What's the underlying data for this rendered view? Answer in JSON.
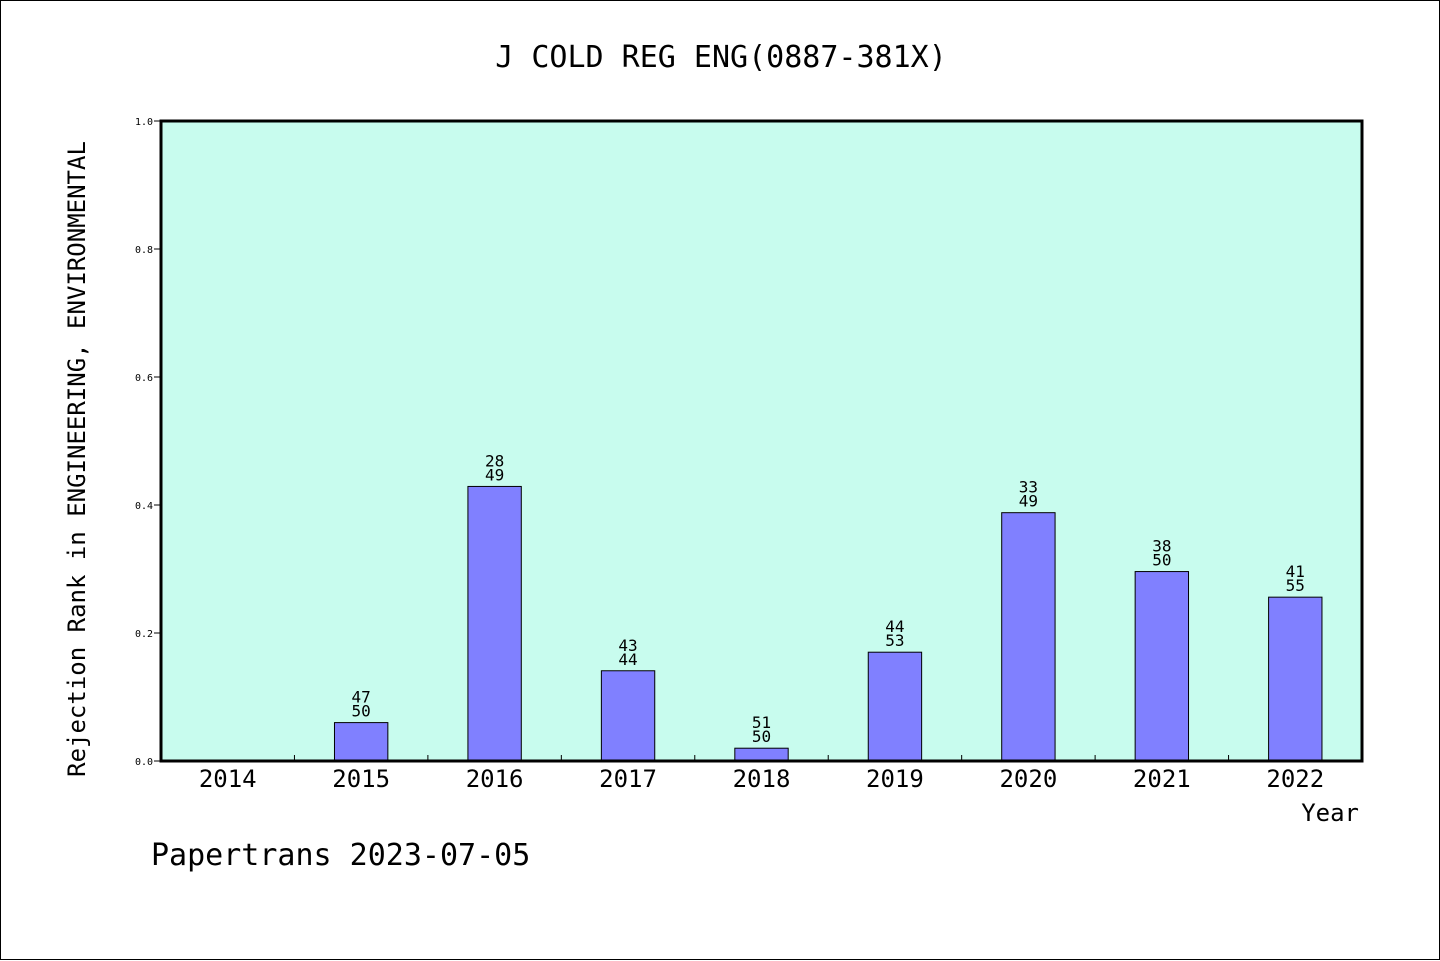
{
  "chart_data": {
    "type": "bar",
    "title": "J COLD REG ENG(0887-381X)",
    "xlabel": "Year",
    "ylabel": "Rejection Rank in ENGINEERING, ENVIRONMENTAL",
    "ylim": [
      0,
      1.0
    ],
    "yticks": [
      "0.0",
      "0.2",
      "0.4",
      "0.6",
      "0.8",
      "1.0"
    ],
    "categories": [
      "2014",
      "2015",
      "2016",
      "2017",
      "2018",
      "2019",
      "2020",
      "2021",
      "2022"
    ],
    "values": [
      null,
      0.06,
      0.429,
      0.141,
      0.02,
      0.17,
      0.388,
      0.296,
      0.256
    ],
    "labels": [
      null,
      [
        "47",
        "50"
      ],
      [
        "28",
        "49"
      ],
      [
        "43",
        "44"
      ],
      [
        "51",
        "50"
      ],
      [
        "44",
        "53"
      ],
      [
        "33",
        "49"
      ],
      [
        "38",
        "50"
      ],
      [
        "41",
        "55"
      ]
    ],
    "grid": false,
    "colors": {
      "plot_background": "#c8fcee",
      "bar_fill": "#8080ff",
      "bar_stroke": "#000000",
      "axis": "#000000"
    }
  },
  "footer": {
    "text": "Papertrans 2023-07-05"
  }
}
